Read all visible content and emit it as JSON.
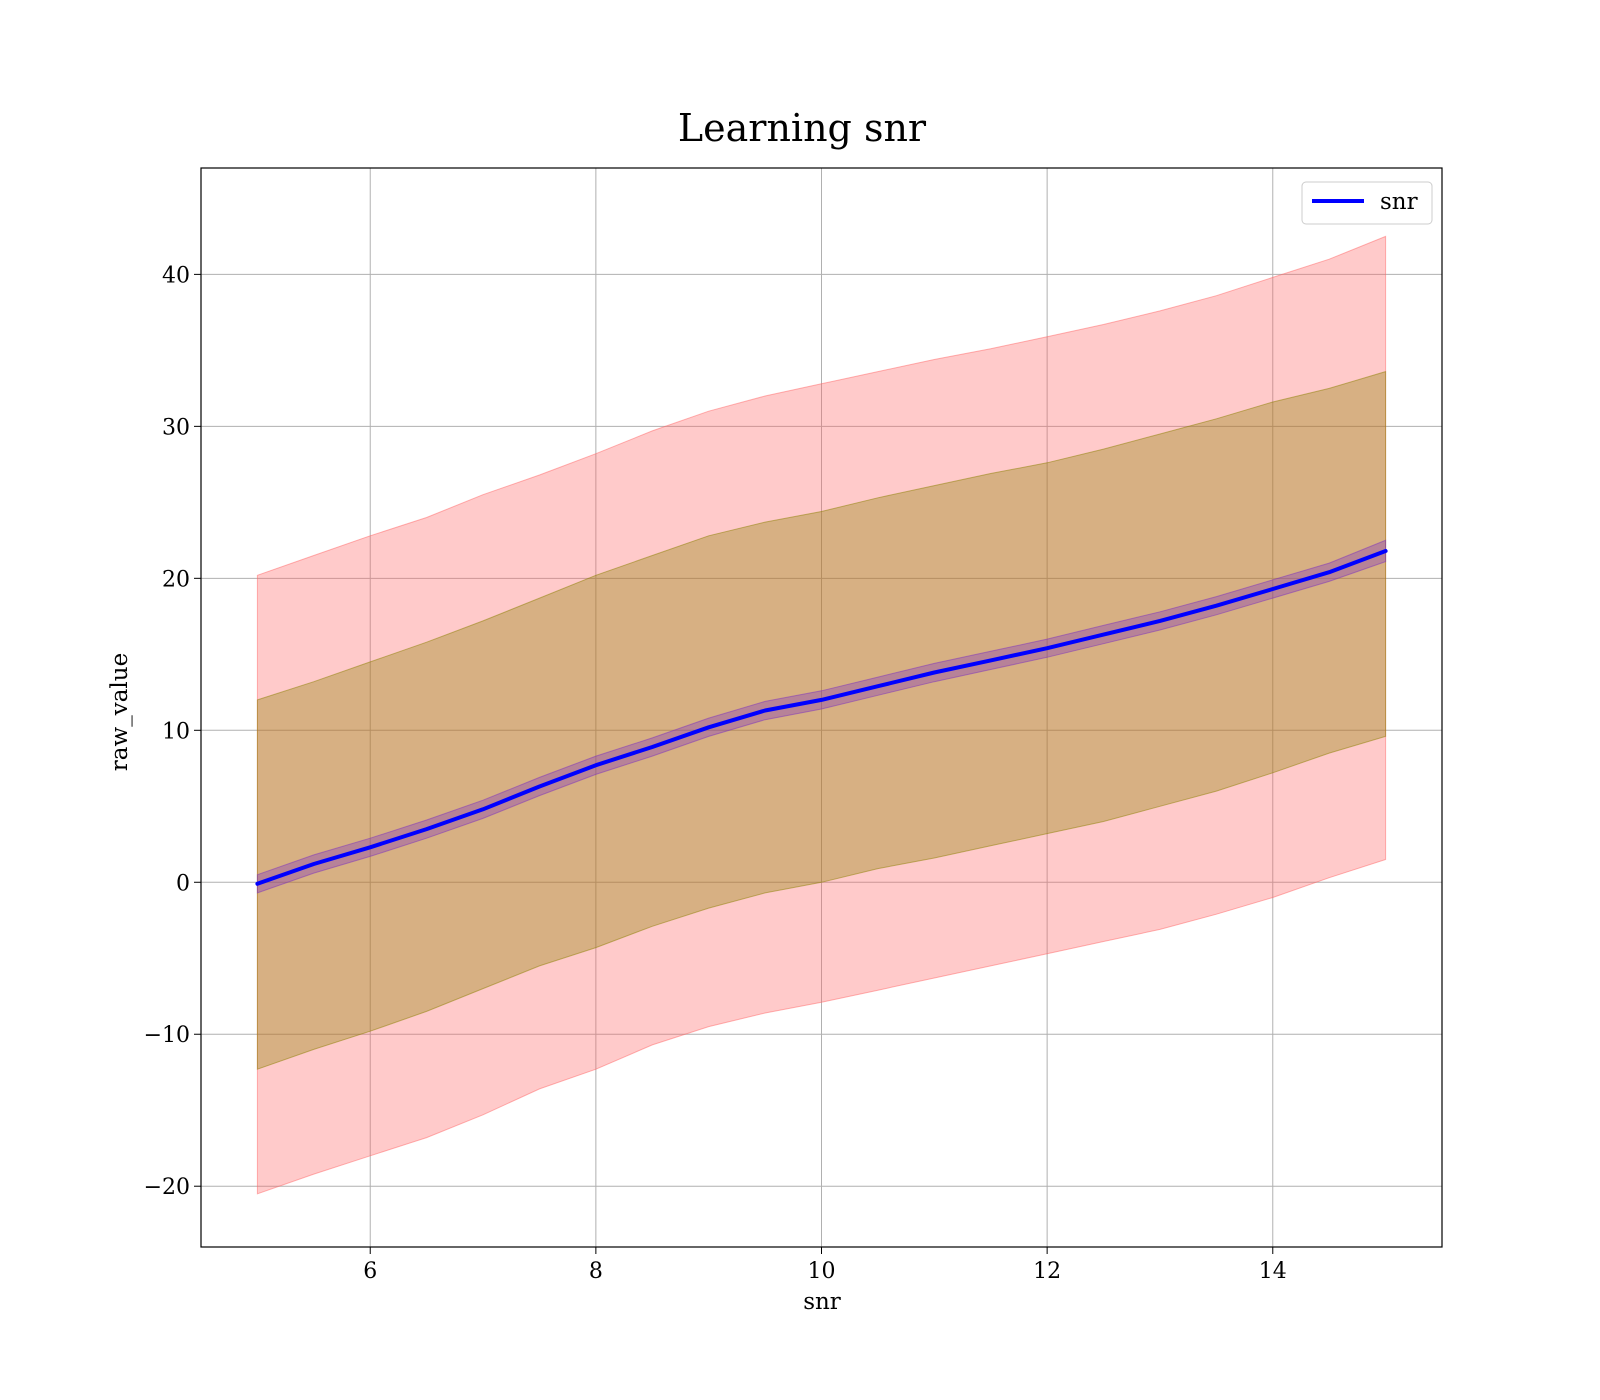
{
  "chart_data": {
    "type": "line",
    "title": "Learning snr",
    "xlabel": "snr",
    "ylabel": "raw_value",
    "xlim": [
      4.5,
      15.5
    ],
    "ylim": [
      -24,
      47
    ],
    "xticks": [
      6,
      8,
      10,
      12,
      14
    ],
    "xtick_labels": [
      "6",
      "8",
      "10",
      "12",
      "14"
    ],
    "yticks": [
      -20,
      -10,
      0,
      10,
      20,
      30,
      40
    ],
    "ytick_labels": [
      "−20",
      "−10",
      "0",
      "10",
      "20",
      "30",
      "40"
    ],
    "grid": true,
    "legend_position": "top-right",
    "series": [
      {
        "name": "snr",
        "color": "#0000ff",
        "x": [
          5,
          5.5,
          6,
          6.5,
          7,
          7.5,
          8,
          8.5,
          9,
          9.5,
          10,
          10.5,
          11,
          11.5,
          12,
          12.5,
          13,
          13.5,
          14,
          14.5,
          15
        ],
        "y": [
          -0.1,
          1.2,
          2.3,
          3.5,
          4.8,
          6.3,
          7.7,
          8.9,
          10.2,
          11.3,
          12.0,
          12.9,
          13.8,
          14.6,
          15.4,
          16.3,
          17.2,
          18.2,
          19.3,
          20.4,
          21.8
        ]
      }
    ],
    "bands": [
      {
        "color": "#ff6666",
        "x": [
          5,
          5.5,
          6,
          6.5,
          7,
          7.5,
          8,
          8.5,
          9,
          9.5,
          10,
          10.5,
          11,
          11.5,
          12,
          12.5,
          13,
          13.5,
          14,
          14.5,
          15
        ],
        "upper": [
          20.2,
          21.5,
          22.8,
          24.0,
          25.5,
          26.8,
          28.2,
          29.7,
          31.0,
          32.0,
          32.8,
          33.6,
          34.4,
          35.1,
          35.9,
          36.7,
          37.6,
          38.6,
          39.8,
          41.0,
          42.5
        ],
        "lower": [
          -20.5,
          -19.2,
          -18.0,
          -16.8,
          -15.3,
          -13.6,
          -12.3,
          -10.7,
          -9.5,
          -8.6,
          -7.9,
          -7.1,
          -6.3,
          -5.5,
          -4.7,
          -3.9,
          -3.1,
          -2.1,
          -1.0,
          0.3,
          1.5
        ]
      },
      {
        "color": "#8b8000",
        "x": [
          5,
          5.5,
          6,
          6.5,
          7,
          7.5,
          8,
          8.5,
          9,
          9.5,
          10,
          10.5,
          11,
          11.5,
          12,
          12.5,
          13,
          13.5,
          14,
          14.5,
          15
        ],
        "upper": [
          12.0,
          13.2,
          14.5,
          15.8,
          17.2,
          18.7,
          20.2,
          21.5,
          22.8,
          23.7,
          24.4,
          25.3,
          26.1,
          26.9,
          27.6,
          28.5,
          29.5,
          30.5,
          31.6,
          32.5,
          33.6
        ],
        "lower": [
          -12.3,
          -11.0,
          -9.8,
          -8.5,
          -7.0,
          -5.5,
          -4.3,
          -2.9,
          -1.7,
          -0.7,
          0.0,
          0.9,
          1.6,
          2.4,
          3.2,
          4.0,
          5.0,
          6.0,
          7.2,
          8.5,
          9.6
        ]
      },
      {
        "color": "#7b2fbf",
        "x": [
          5,
          5.5,
          6,
          6.5,
          7,
          7.5,
          8,
          8.5,
          9,
          9.5,
          10,
          10.5,
          11,
          11.5,
          12,
          12.5,
          13,
          13.5,
          14,
          14.5,
          15
        ],
        "upper": [
          0.5,
          1.8,
          2.9,
          4.1,
          5.4,
          6.9,
          8.3,
          9.5,
          10.8,
          11.9,
          12.6,
          13.5,
          14.4,
          15.2,
          16.0,
          16.9,
          17.8,
          18.8,
          19.9,
          21.0,
          22.5
        ],
        "lower": [
          -0.7,
          0.6,
          1.7,
          2.9,
          4.2,
          5.7,
          7.1,
          8.3,
          9.6,
          10.7,
          11.4,
          12.3,
          13.2,
          14.0,
          14.8,
          15.7,
          16.6,
          17.6,
          18.7,
          19.8,
          21.1
        ]
      }
    ]
  }
}
